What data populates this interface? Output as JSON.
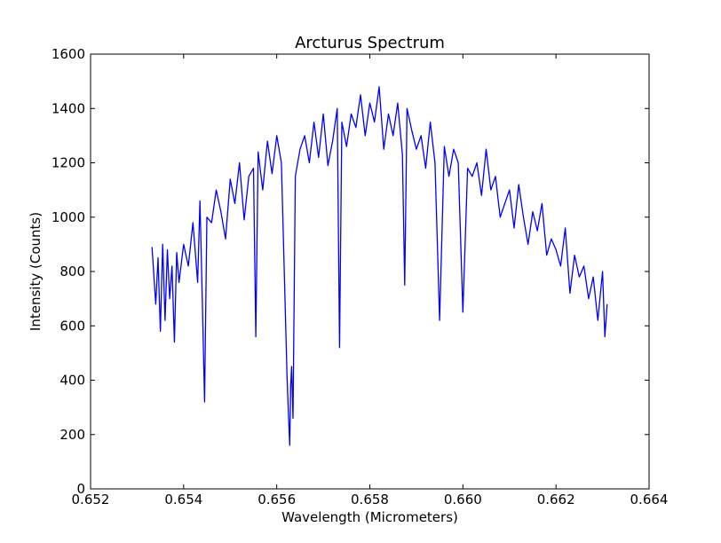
{
  "chart_data": {
    "type": "line",
    "title": "Arcturus Spectrum",
    "xlabel": "Wavelength (Micrometers)",
    "ylabel": "Intensity (Counts)",
    "xlim": [
      0.652,
      0.664
    ],
    "ylim": [
      0,
      1600
    ],
    "xticks": [
      "0.652",
      "0.654",
      "0.656",
      "0.658",
      "0.660",
      "0.662",
      "0.664"
    ],
    "yticks": [
      "0",
      "200",
      "400",
      "600",
      "800",
      "1000",
      "1200",
      "1400",
      "1600"
    ],
    "grid": false,
    "legend": "none",
    "series": [
      {
        "color": "#0000ff",
        "x": [
          0.65332,
          0.6534,
          0.65345,
          0.6535,
          0.65355,
          0.6536,
          0.65365,
          0.6537,
          0.65375,
          0.6538,
          0.65385,
          0.6539,
          0.654,
          0.6541,
          0.6542,
          0.6543,
          0.65435,
          0.6544,
          0.65445,
          0.6545,
          0.6546,
          0.6547,
          0.6548,
          0.6549,
          0.655,
          0.6551,
          0.6552,
          0.6553,
          0.6554,
          0.6555,
          0.65555,
          0.6556,
          0.6557,
          0.6558,
          0.6559,
          0.656,
          0.6561,
          0.6562,
          0.65622,
          0.65625,
          0.65628,
          0.6563,
          0.65632,
          0.65635,
          0.6564,
          0.6565,
          0.6566,
          0.6567,
          0.6568,
          0.6569,
          0.657,
          0.6571,
          0.6572,
          0.6573,
          0.65735,
          0.6574,
          0.6575,
          0.6576,
          0.6577,
          0.6578,
          0.6579,
          0.658,
          0.6581,
          0.6582,
          0.6583,
          0.6584,
          0.6585,
          0.6586,
          0.6587,
          0.65875,
          0.6588,
          0.6589,
          0.659,
          0.6591,
          0.6592,
          0.6593,
          0.6594,
          0.6595,
          0.6596,
          0.6597,
          0.6598,
          0.6599,
          0.66,
          0.6601,
          0.6602,
          0.6603,
          0.6604,
          0.6605,
          0.6606,
          0.6607,
          0.6608,
          0.6609,
          0.661,
          0.6611,
          0.6612,
          0.6613,
          0.6614,
          0.6615,
          0.6616,
          0.6617,
          0.6618,
          0.6619,
          0.662,
          0.6621,
          0.6622,
          0.6623,
          0.6624,
          0.6625,
          0.6626,
          0.6627,
          0.6628,
          0.6629,
          0.663,
          0.66305,
          0.6631
        ],
        "y": [
          890,
          680,
          850,
          580,
          900,
          620,
          880,
          700,
          820,
          540,
          870,
          760,
          900,
          820,
          980,
          760,
          1060,
          700,
          320,
          1000,
          980,
          1100,
          1020,
          920,
          1140,
          1050,
          1200,
          990,
          1150,
          1180,
          560,
          1240,
          1100,
          1280,
          1160,
          1300,
          1200,
          560,
          420,
          280,
          160,
          380,
          450,
          260,
          1150,
          1250,
          1300,
          1200,
          1350,
          1220,
          1380,
          1190,
          1280,
          1400,
          520,
          1350,
          1260,
          1380,
          1330,
          1450,
          1300,
          1420,
          1350,
          1480,
          1250,
          1380,
          1300,
          1420,
          1230,
          750,
          1400,
          1320,
          1250,
          1300,
          1180,
          1350,
          1200,
          620,
          1260,
          1150,
          1250,
          1200,
          650,
          1180,
          1150,
          1200,
          1080,
          1250,
          1100,
          1150,
          1000,
          1050,
          1100,
          960,
          1120,
          1000,
          900,
          1020,
          950,
          1050,
          860,
          920,
          880,
          820,
          960,
          720,
          860,
          780,
          820,
          700,
          780,
          620,
          800,
          560,
          680
        ]
      }
    ]
  }
}
